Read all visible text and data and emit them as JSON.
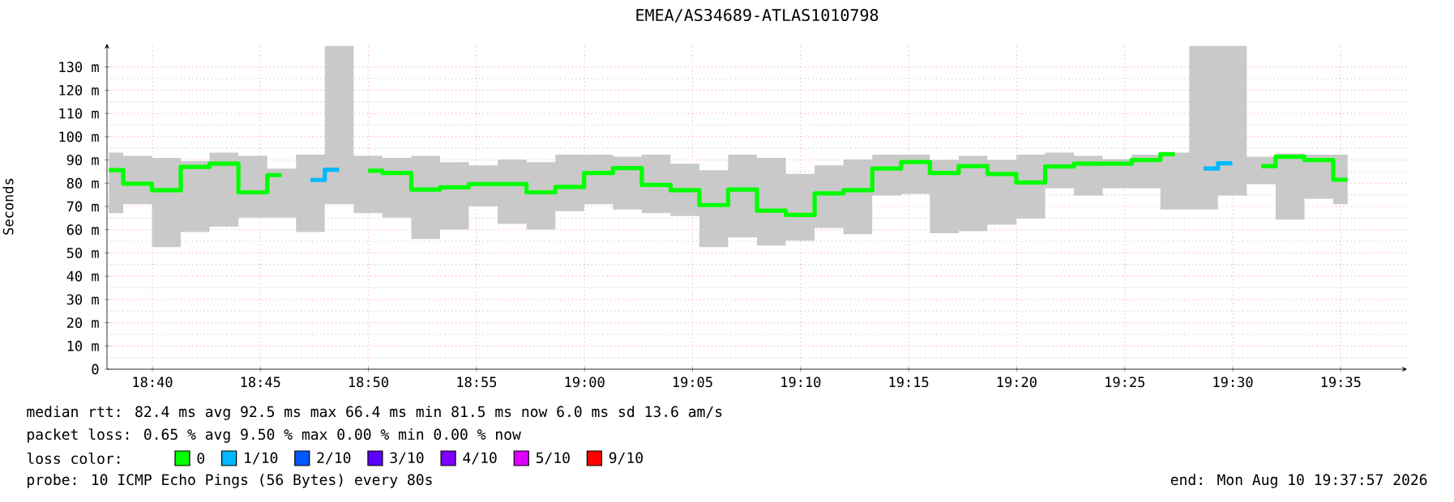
{
  "chart_data": {
    "type": "step",
    "title": "EMEA/AS34689-ATLAS1010798",
    "ylabel": "Seconds",
    "legend_title": "loss color:",
    "x": [
      18.6331,
      18.6553,
      18.6775,
      18.6997,
      18.7219,
      18.7442,
      18.7664,
      18.7886,
      18.8108,
      18.8331,
      18.8553,
      18.8775,
      18.8997,
      18.9219,
      18.9442,
      18.9664,
      18.9886,
      19.0108,
      19.0331,
      19.0553,
      19.0775,
      19.0997,
      19.1219,
      19.1442,
      19.1664,
      19.1886,
      19.2108,
      19.2331,
      19.2553,
      19.2775,
      19.2997,
      19.3219,
      19.3442,
      19.3664,
      19.3886,
      19.4108,
      19.4331,
      19.4553,
      19.4775,
      19.4997,
      19.5219,
      19.5442,
      19.5664,
      19.5886
    ],
    "series": [
      {
        "name": "0",
        "color": "#00ff00",
        "values": [
          85.6,
          79.8,
          77.0,
          87.0,
          88.4,
          76.1,
          83.5,
          null,
          null,
          85.4,
          84.4,
          77.3,
          78.2,
          79.6,
          79.6,
          76.1,
          78.4,
          84.4,
          86.5,
          79.3,
          77.0,
          70.6,
          77.3,
          68.2,
          66.4,
          75.6,
          77.0,
          86.3,
          89.1,
          84.4,
          87.4,
          84.0,
          80.3,
          87.2,
          88.4,
          88.4,
          90.0,
          92.5,
          null,
          null,
          87.4,
          91.4,
          90.0,
          81.5
        ],
        "lower": [
          67.1,
          71.0,
          52.5,
          59.0,
          61.3,
          65.2,
          65.2,
          59.0,
          71.0,
          67.1,
          65.2,
          56.0,
          60.1,
          70.1,
          62.5,
          60.1,
          68.0,
          71.0,
          68.7,
          67.1,
          65.9,
          52.5,
          56.7,
          53.2,
          55.3,
          60.8,
          58.1,
          74.7,
          75.4,
          58.5,
          59.4,
          62.2,
          64.8,
          77.8,
          74.7,
          77.8,
          77.8,
          68.7,
          68.7,
          74.7,
          79.6,
          64.3,
          73.3,
          71.0
        ],
        "upper": [
          93.2,
          91.8,
          90.9,
          89.5,
          93.2,
          91.8,
          86.3,
          92.3,
          139,
          91.8,
          90.9,
          91.8,
          89.1,
          87.7,
          90.2,
          89.1,
          92.3,
          92.3,
          91.4,
          92.3,
          88.4,
          85.6,
          92.3,
          90.9,
          84.0,
          87.7,
          90.2,
          92.3,
          92.3,
          90.0,
          91.8,
          90.0,
          92.3,
          93.2,
          91.8,
          90.4,
          92.3,
          93.2,
          139,
          139,
          91.4,
          92.8,
          92.3,
          92.3
        ]
      },
      {
        "name": "1/10",
        "color": "#00b8ff",
        "values": [
          null,
          null,
          null,
          null,
          null,
          null,
          null,
          81.4,
          85.8,
          null,
          null,
          null,
          null,
          null,
          null,
          null,
          null,
          null,
          null,
          null,
          null,
          null,
          null,
          null,
          null,
          null,
          null,
          null,
          null,
          null,
          null,
          null,
          null,
          null,
          null,
          null,
          null,
          null,
          86.3,
          88.6,
          null,
          null,
          null,
          null
        ]
      },
      {
        "name": "2/10",
        "color": "#0059ff",
        "values": [
          null,
          null,
          null,
          null,
          null,
          null,
          null,
          null,
          null,
          null,
          null,
          null,
          null,
          null,
          null,
          null,
          null,
          null,
          null,
          null,
          null,
          null,
          null,
          null,
          null,
          null,
          null,
          null,
          null,
          null,
          null,
          null,
          null,
          null,
          null,
          null,
          null,
          null,
          null,
          null,
          null,
          null,
          null,
          null
        ]
      },
      {
        "name": "3/10",
        "color": "#5e00ff",
        "values": [
          null,
          null,
          null,
          null,
          null,
          null,
          null,
          null,
          null,
          null,
          null,
          null,
          null,
          null,
          null,
          null,
          null,
          null,
          null,
          null,
          null,
          null,
          null,
          null,
          null,
          null,
          null,
          null,
          null,
          null,
          null,
          null,
          null,
          null,
          null,
          null,
          null,
          null,
          null,
          null,
          null,
          null,
          null,
          null
        ]
      },
      {
        "name": "4/10",
        "color": "#7e00ff",
        "values": [
          null,
          null,
          null,
          null,
          null,
          null,
          null,
          null,
          null,
          null,
          null,
          null,
          null,
          null,
          null,
          null,
          null,
          null,
          null,
          null,
          null,
          null,
          null,
          null,
          null,
          null,
          null,
          null,
          null,
          null,
          null,
          null,
          null,
          null,
          null,
          null,
          null,
          null,
          null,
          null,
          null,
          null,
          null,
          null
        ]
      },
      {
        "name": "5/10",
        "color": "#dd00ff",
        "values": [
          null,
          null,
          null,
          null,
          null,
          null,
          null,
          null,
          null,
          null,
          null,
          null,
          null,
          null,
          null,
          null,
          null,
          null,
          null,
          null,
          null,
          null,
          null,
          null,
          null,
          null,
          null,
          null,
          null,
          null,
          null,
          null,
          null,
          null,
          null,
          null,
          null,
          null,
          null,
          null,
          null,
          null,
          null,
          null
        ]
      },
      {
        "name": "9/10",
        "color": "#ff0000",
        "values": [
          null,
          null,
          null,
          null,
          null,
          null,
          null,
          null,
          null,
          null,
          null,
          null,
          null,
          null,
          null,
          null,
          null,
          null,
          null,
          null,
          null,
          null,
          null,
          null,
          null,
          null,
          null,
          null,
          null,
          null,
          null,
          null,
          null,
          null,
          null,
          null,
          null,
          null,
          null,
          null,
          null,
          null,
          null,
          null
        ]
      }
    ],
    "xlim": [
      18.6317,
      19.6344
    ],
    "xticks": [
      {
        "value": 18.6667,
        "label": "18:40"
      },
      {
        "value": 18.75,
        "label": "18:45"
      },
      {
        "value": 18.8333,
        "label": "18:50"
      },
      {
        "value": 18.9167,
        "label": "18:55"
      },
      {
        "value": 19.0,
        "label": "19:00"
      },
      {
        "value": 19.0833,
        "label": "19:05"
      },
      {
        "value": 19.1667,
        "label": "19:10"
      },
      {
        "value": 19.25,
        "label": "19:15"
      },
      {
        "value": 19.3333,
        "label": "19:20"
      },
      {
        "value": 19.4167,
        "label": "19:25"
      },
      {
        "value": 19.5,
        "label": "19:30"
      },
      {
        "value": 19.5833,
        "label": "19:35"
      }
    ],
    "ylim": [
      0,
      140
    ],
    "yticks": [
      0,
      {
        "value": 10,
        "label": "10 m"
      },
      {
        "value": 20,
        "label": "20 m"
      },
      {
        "value": 30,
        "label": "30 m"
      },
      {
        "value": 40,
        "label": "40 m"
      },
      {
        "value": 50,
        "label": "50 m"
      },
      {
        "value": 60,
        "label": "60 m"
      },
      {
        "value": 70,
        "label": "70 m"
      },
      {
        "value": 80,
        "label": "80 m"
      },
      {
        "value": 90,
        "label": "90 m"
      },
      {
        "value": 100,
        "label": "100 m"
      },
      {
        "value": 110,
        "label": "110 m"
      },
      {
        "value": 120,
        "label": "120 m"
      },
      {
        "value": 130,
        "label": "130 m"
      }
    ],
    "grid": true,
    "legend": "bottom",
    "marker": "none",
    "line_style": "solid",
    "annotations": [
      "median rtt:  82.4 ms avg  92.5 ms max  66.4 ms min  81.5 ms now  6.0 ms sd  13.6   am/s",
      "packet loss: 0.65 % avg  9.50 % max  0.00 % min  0.00 % now",
      "probe:       10 ICMP Echo Pings (56 Bytes) every 80s",
      "end: Mon Aug 10 19:37:57 2026"
    ]
  }
}
